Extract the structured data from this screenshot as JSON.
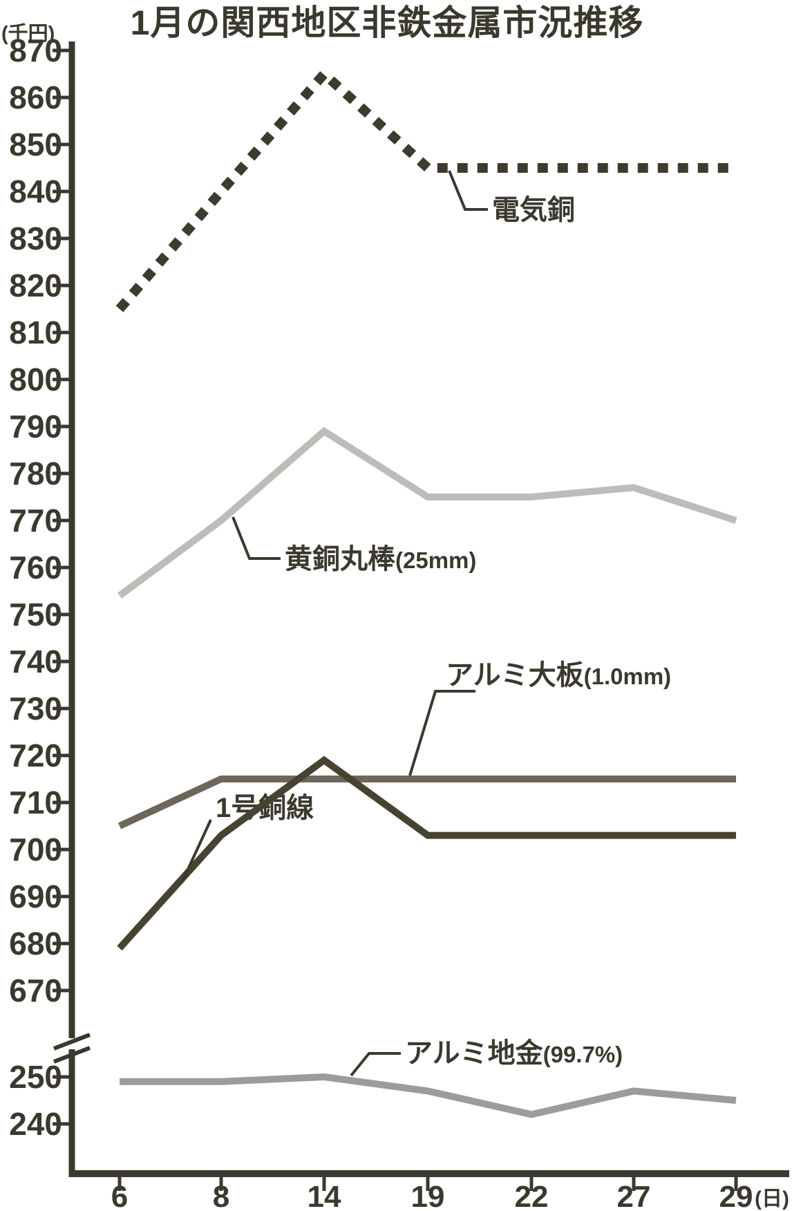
{
  "chart_data": {
    "type": "line",
    "title": "1月の関西地区非鉄金属市況推移",
    "y_unit_label": "(千円)",
    "x_axis_suffix": "(日)",
    "x_categories": [
      "6",
      "8",
      "14",
      "19",
      "22",
      "27",
      "29"
    ],
    "y_axis": {
      "top_ticks": [
        870,
        860,
        850,
        840,
        830,
        820,
        810,
        800,
        790,
        780,
        770,
        760,
        750,
        740,
        730,
        720,
        710,
        700,
        690,
        680,
        670
      ],
      "bottom_ticks": [
        250,
        240
      ],
      "axis_break": true,
      "top_range": [
        670,
        870
      ],
      "bottom_range": [
        240,
        250
      ],
      "grid": false
    },
    "axis_color": "#3b382e",
    "series": [
      {
        "name": "電気銅",
        "qualifier": "",
        "line_style": "dashed",
        "color": "#3e3a2e",
        "section": "top",
        "values": [
          815,
          840,
          865,
          845,
          845,
          845,
          845
        ]
      },
      {
        "name": "黄銅丸棒",
        "qualifier": "(25mm)",
        "line_style": "solid",
        "color": "#bdbcb9",
        "section": "top",
        "values": [
          754,
          770,
          789,
          775,
          775,
          777,
          770
        ]
      },
      {
        "name": "アルミ大板",
        "qualifier": "(1.0mm)",
        "line_style": "solid",
        "color": "#6d675a",
        "section": "top",
        "values": [
          705,
          715,
          715,
          715,
          715,
          715,
          715
        ]
      },
      {
        "name": "1号銅線",
        "qualifier": "",
        "line_style": "solid",
        "color": "#474231",
        "section": "top",
        "values": [
          679,
          703,
          719,
          703,
          703,
          703,
          703
        ]
      },
      {
        "name": "アルミ地金",
        "qualifier": "(99.7%)",
        "line_style": "solid",
        "color": "#9c9c9a",
        "section": "bottom",
        "values": [
          249,
          249,
          250,
          247,
          242,
          247,
          245
        ]
      }
    ],
    "legend_position": "inline-labels"
  }
}
